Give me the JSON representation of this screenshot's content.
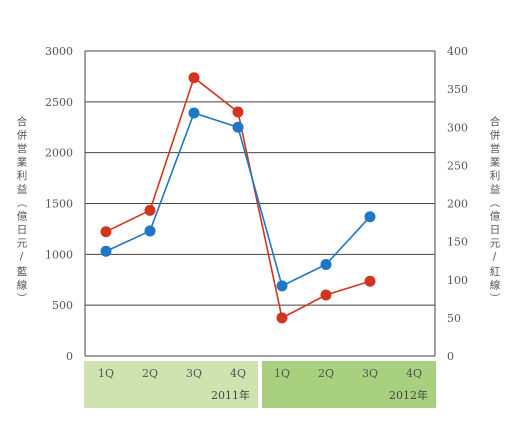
{
  "chart_data": {
    "type": "line",
    "categories": [
      "1Q",
      "2Q",
      "3Q",
      "4Q",
      "1Q",
      "2Q",
      "3Q",
      "4Q"
    ],
    "year_groups": [
      {
        "label": "2011年",
        "fill": "#cfe3b0"
      },
      {
        "label": "2012年",
        "fill": "#a9d07f"
      }
    ],
    "left_axis": {
      "label": "合併営業利益（億日元/藍線）",
      "ylim": [
        0,
        3000
      ],
      "ticks": [
        "0",
        "500",
        "1000",
        "1500",
        "2000",
        "2500",
        "3000"
      ]
    },
    "right_axis": {
      "label": "合併営業利益（億日元/紅線）",
      "ylim": [
        0,
        400
      ],
      "ticks": [
        "0",
        "50",
        "100",
        "150",
        "200",
        "250",
        "300",
        "350",
        "400"
      ]
    },
    "series": [
      {
        "axis": "left",
        "color": "#1f77c4",
        "values": [
          1030,
          1230,
          2390,
          2250,
          690,
          900,
          1370,
          null
        ]
      },
      {
        "axis": "right",
        "color": "#d0361f",
        "values": [
          163,
          191,
          365,
          320,
          50,
          80,
          98,
          null
        ]
      }
    ],
    "grid": true
  }
}
